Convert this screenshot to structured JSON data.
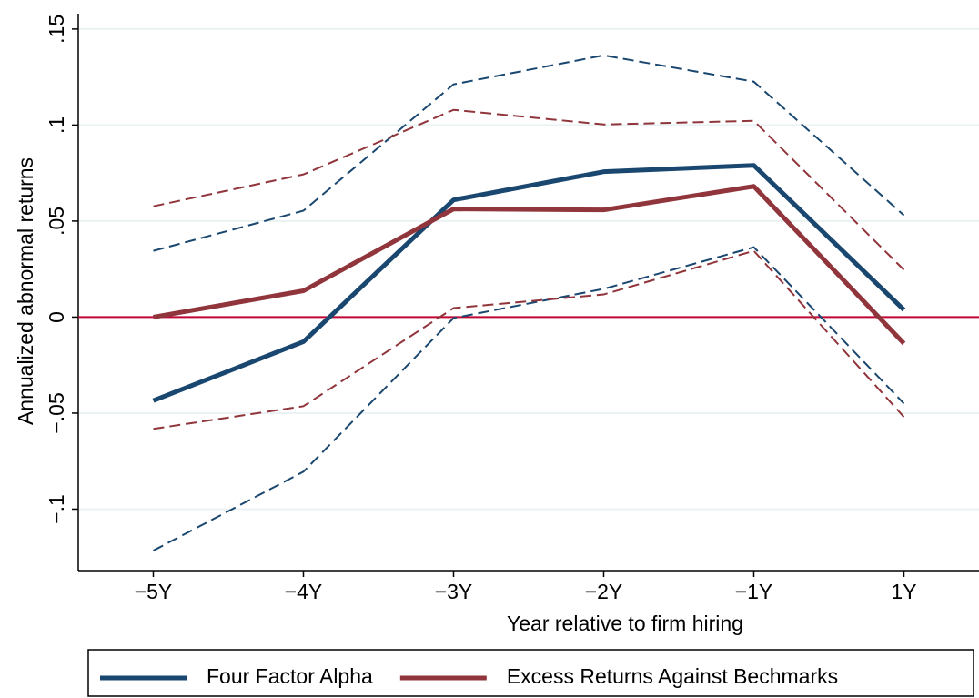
{
  "chart_data": {
    "type": "line",
    "x_label": "Year relative to firm hiring",
    "y_label": "Annualized abnormal returns",
    "categories": [
      "−5Y",
      "−4Y",
      "−3Y",
      "−2Y",
      "−1Y",
      "1Y"
    ],
    "series": [
      {
        "name": "Four Factor Alpha",
        "color": "#1a476f",
        "values": [
          -0.0435,
          -0.0128,
          0.061,
          0.0757,
          0.079,
          0.0038
        ],
        "ci_upper": [
          0.0345,
          0.0554,
          0.1212,
          0.1363,
          0.1226,
          0.053
        ],
        "ci_lower": [
          -0.1216,
          -0.0805,
          -0.0005,
          0.0147,
          0.0364,
          -0.045
        ]
      },
      {
        "name": "Excess Returns Against Bechmarks",
        "color": "#90353b",
        "values": [
          0,
          0.0137,
          0.0563,
          0.0558,
          0.0681,
          -0.0137
        ],
        "ci_upper": [
          0.0577,
          0.0743,
          0.1079,
          0.1003,
          0.1022,
          0.0246
        ],
        "ci_lower": [
          -0.0582,
          -0.0464,
          0.0047,
          0.0118,
          0.0345,
          -0.052
        ]
      }
    ],
    "ylim": [
      -0.132,
      0.158
    ],
    "yticks": [
      {
        "value": -0.1,
        "label": "−.1"
      },
      {
        "value": -0.05,
        "label": "−.05"
      },
      0,
      {
        "value": 0.05,
        "label": ".05"
      },
      {
        "value": 0.1,
        "label": ".1"
      },
      {
        "value": 0.15,
        "label": ".15"
      }
    ],
    "grid": true,
    "reference_line": {
      "value": 0,
      "color": "#c10534"
    },
    "legend": "bottom"
  }
}
